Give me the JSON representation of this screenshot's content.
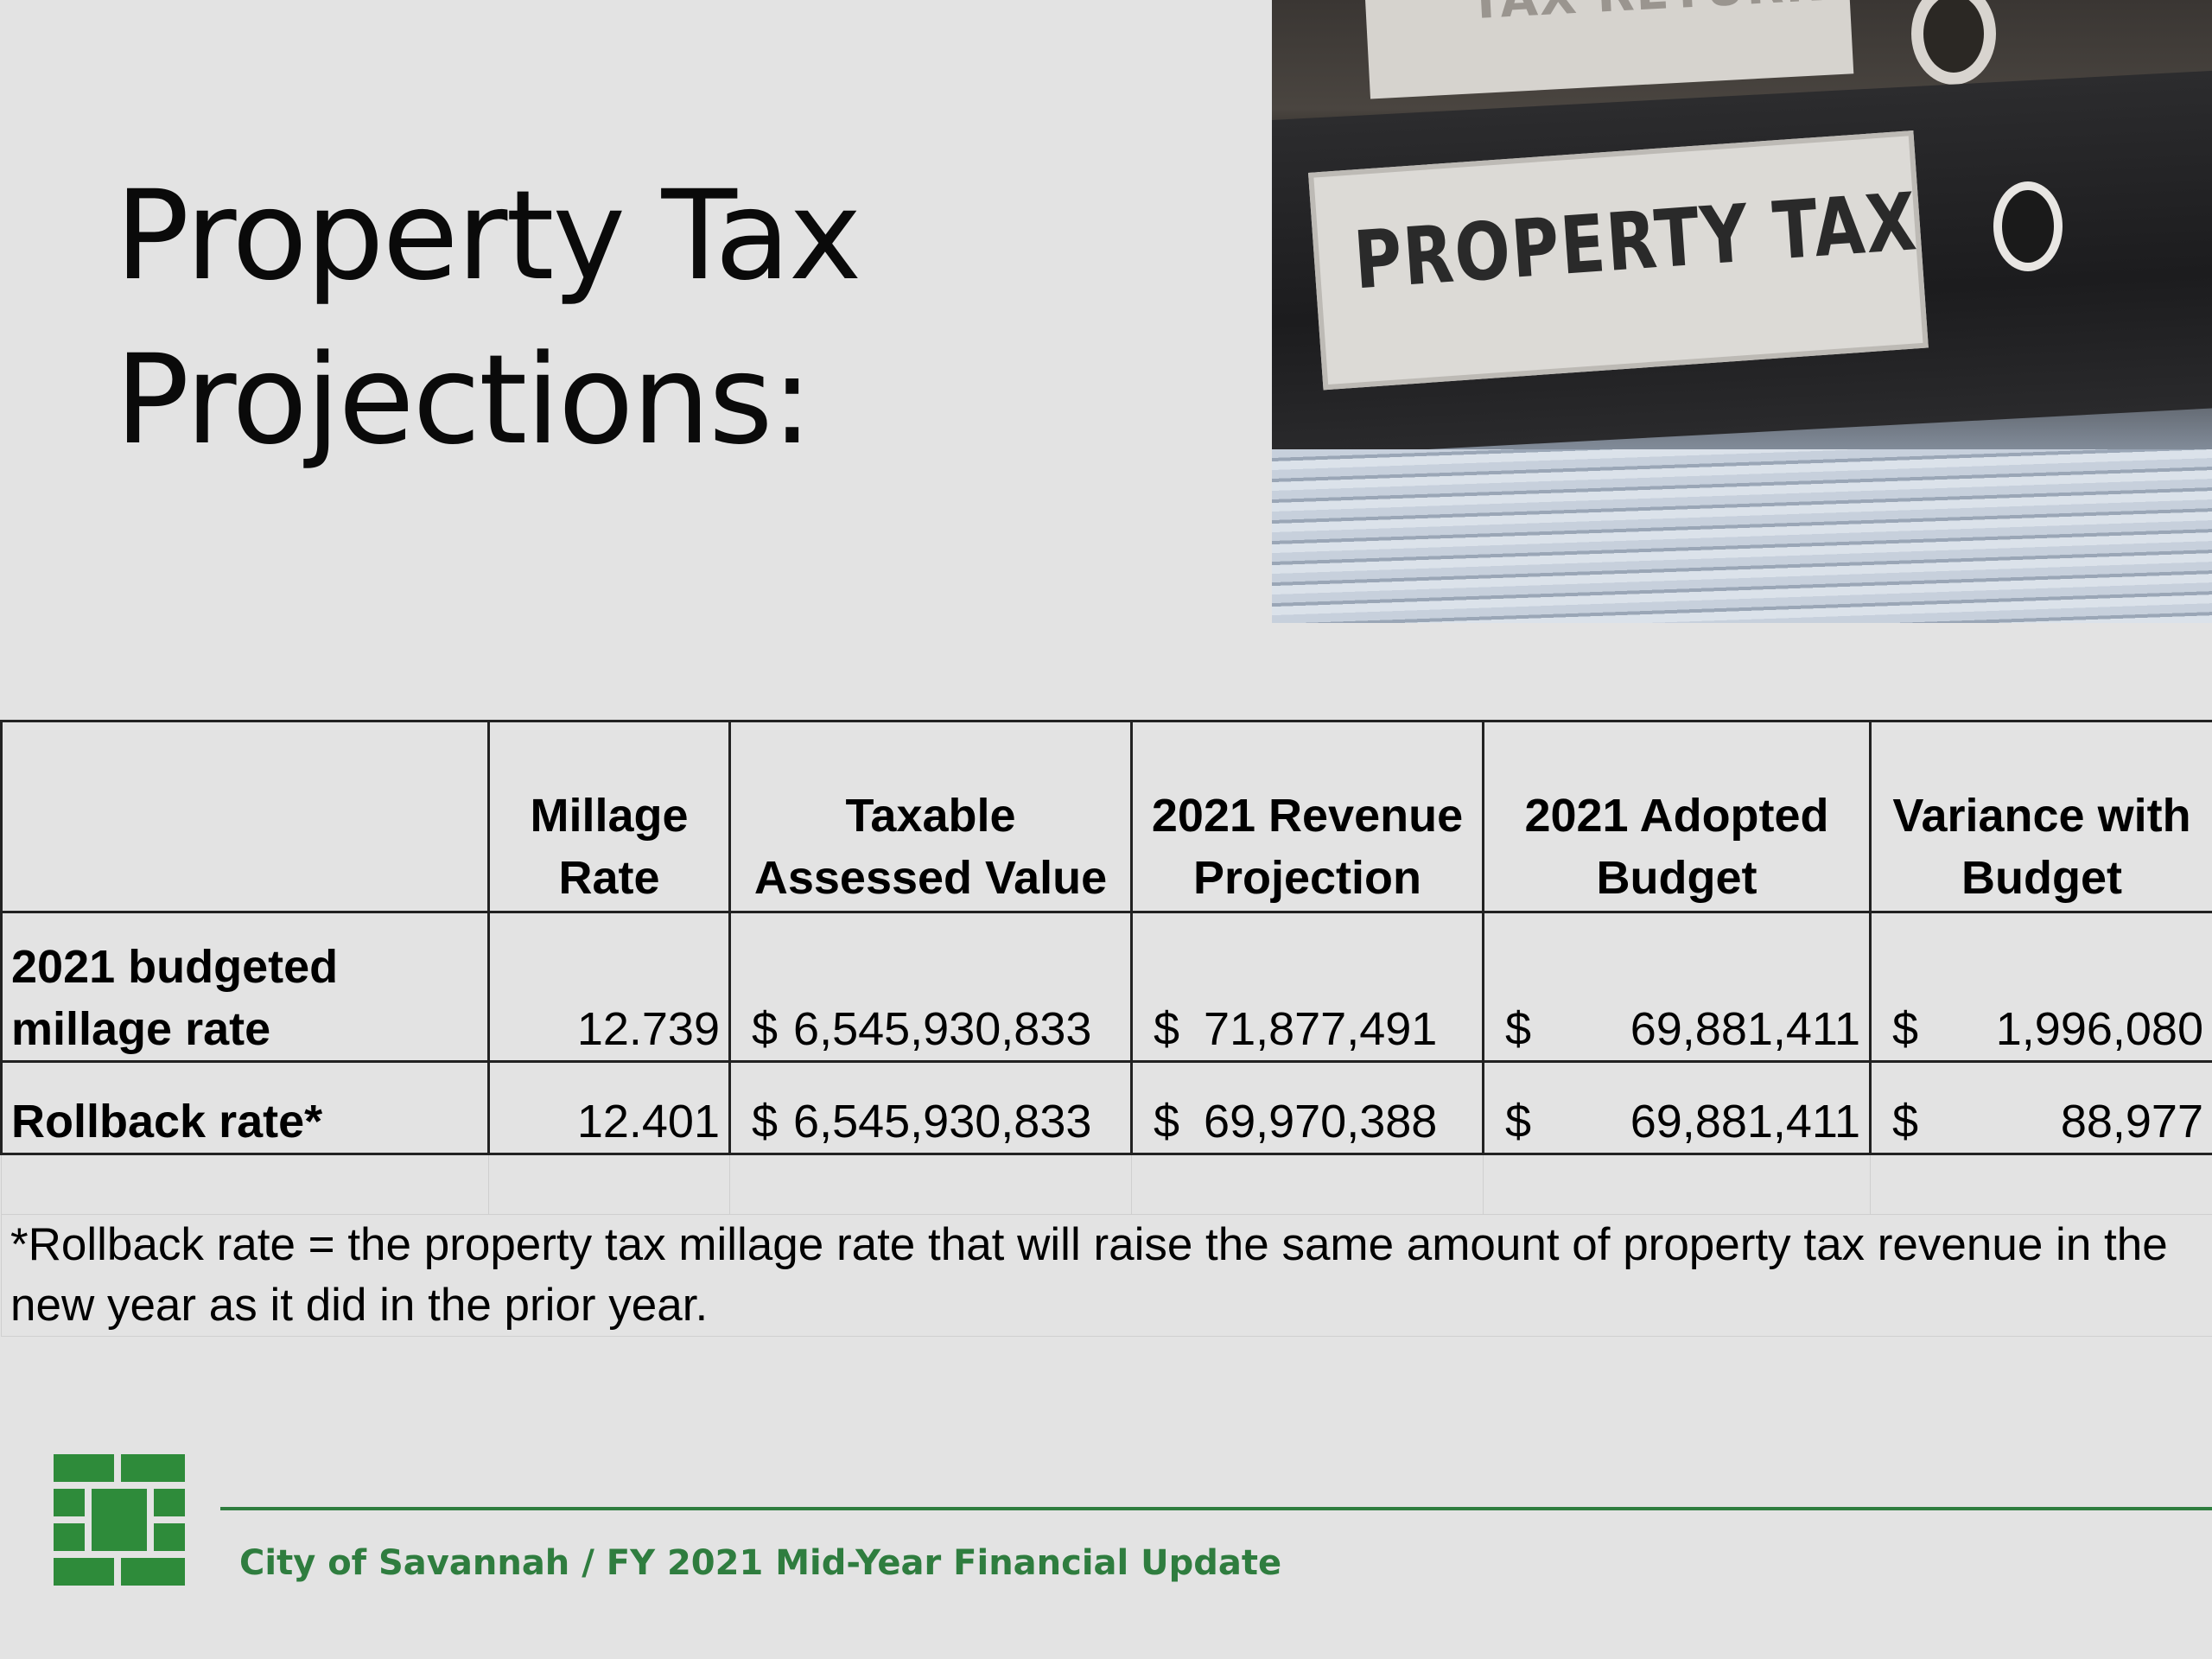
{
  "slide": {
    "title_line1": "Property Tax",
    "title_line2": "Projections:"
  },
  "photo": {
    "back_label": "TAX RETURN",
    "label": "PROPERTY TAX"
  },
  "table": {
    "headers": [
      "",
      "Millage Rate",
      "Taxable Assessed Value",
      "2021 Revenue Projection",
      "2021 Adopted Budget",
      "Variance with Budget"
    ],
    "rows": [
      {
        "label": "2021 budgeted millage rate",
        "millage_rate": "12.739",
        "taxable_value": "6,545,930,833",
        "revenue_projection": "71,877,491",
        "adopted_budget": "69,881,411",
        "variance": "1,996,080"
      },
      {
        "label": "Rollback rate*",
        "millage_rate": "12.401",
        "taxable_value": "6,545,930,833",
        "revenue_projection": "69,970,388",
        "adopted_budget": "69,881,411",
        "variance": "88,977"
      }
    ],
    "currency_symbol": "$",
    "footnote": "*Rollback rate = the property tax millage rate that will raise the same amount of property tax revenue in the new year as it did in the prior year."
  },
  "footer": {
    "text": "City of Savannah / FY 2021 Mid-Year Financial Update"
  },
  "colors": {
    "background": "#e3e3e3",
    "brand_green": "#2f7d3f",
    "logo_green": "#2e8b3a"
  },
  "icons": {
    "logo": "city-of-savannah-brick-logo"
  }
}
